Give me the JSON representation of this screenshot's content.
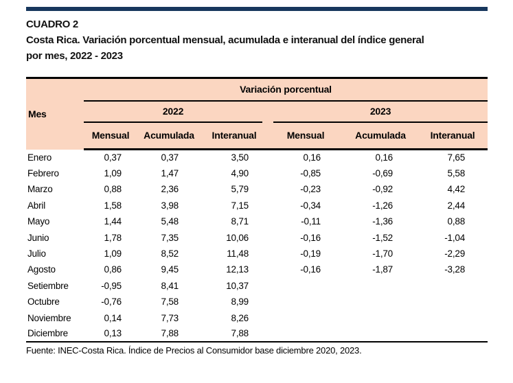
{
  "colors": {
    "accent_bar": "#17375d",
    "header_bg": "#fbd6c1",
    "text": "#000000"
  },
  "document": {
    "kicker": "CUADRO 2",
    "title_line1": "Costa Rica. Variación porcentual mensual, acumulada e interanual del índice general",
    "title_line2": "por mes, 2022 - 2023",
    "source": "Fuente: INEC-Costa Rica. Índice de Precios al Consumidor base diciembre 2020, 2023."
  },
  "table": {
    "month_col_header": "Mes",
    "group_header": "Variación porcentual",
    "years": [
      "2022",
      "2023"
    ],
    "sub_headers": [
      "Mensual",
      "Acumulada",
      "Interanual"
    ],
    "rows": [
      {
        "mes": "Enero",
        "v": [
          "0,37",
          "0,37",
          "3,50",
          "0,16",
          "0,16",
          "7,65"
        ]
      },
      {
        "mes": "Febrero",
        "v": [
          "1,09",
          "1,47",
          "4,90",
          "-0,85",
          "-0,69",
          "5,58"
        ]
      },
      {
        "mes": "Marzo",
        "v": [
          "0,88",
          "2,36",
          "5,79",
          "-0,23",
          "-0,92",
          "4,42"
        ]
      },
      {
        "mes": "Abril",
        "v": [
          "1,58",
          "3,98",
          "7,15",
          "-0,34",
          "-1,26",
          "2,44"
        ]
      },
      {
        "mes": "Mayo",
        "v": [
          "1,44",
          "5,48",
          "8,71",
          "-0,11",
          "-1,36",
          "0,88"
        ]
      },
      {
        "mes": "Junio",
        "v": [
          "1,78",
          "7,35",
          "10,06",
          "-0,16",
          "-1,52",
          "-1,04"
        ]
      },
      {
        "mes": "Julio",
        "v": [
          "1,09",
          "8,52",
          "11,48",
          "-0,19",
          "-1,70",
          "-2,29"
        ]
      },
      {
        "mes": "Agosto",
        "v": [
          "0,86",
          "9,45",
          "12,13",
          "-0,16",
          "-1,87",
          "-3,28"
        ]
      },
      {
        "mes": "Setiembre",
        "v": [
          "-0,95",
          "8,41",
          "10,37",
          "",
          "",
          ""
        ]
      },
      {
        "mes": "Octubre",
        "v": [
          "-0,76",
          "7,58",
          "8,99",
          "",
          "",
          ""
        ]
      },
      {
        "mes": "Noviembre",
        "v": [
          "0,14",
          "7,73",
          "8,26",
          "",
          "",
          ""
        ]
      },
      {
        "mes": "Diciembre",
        "v": [
          "0,13",
          "7,88",
          "7,88",
          "",
          "",
          ""
        ]
      }
    ]
  }
}
